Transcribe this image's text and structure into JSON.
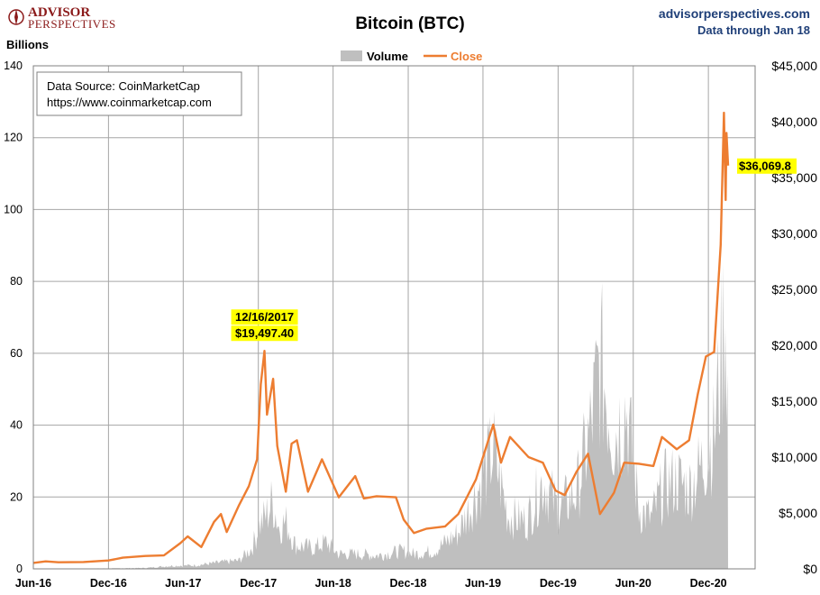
{
  "brand": {
    "name": "ADVISOR",
    "sub": "PERSPECTIVES"
  },
  "header": {
    "site": "advisorperspectives.com",
    "data_through": "Data through Jan 18"
  },
  "colors": {
    "volume": "#bfbfbf",
    "close": "#ed7d31",
    "annotation_bg": "#ffff00",
    "grid": "#a6a6a6",
    "brand": "#8b1a1a",
    "header_text": "#1f3f78"
  },
  "source_box": {
    "line1": "Data Source: CoinMarketCap",
    "line2": "https://www.coinmarketcap.com"
  },
  "chart_data": {
    "type": "area+line",
    "title": "Bitcoin (BTC)",
    "ylabel_left": "Billions",
    "legend": {
      "position": "top-center",
      "items": [
        "Volume",
        "Close"
      ]
    },
    "grid": true,
    "x_range": [
      "2016-06-01",
      "2021-01-18"
    ],
    "x_ticks": [
      {
        "date": "2016-06-01",
        "label": "Jun-16"
      },
      {
        "date": "2016-12-01",
        "label": "Dec-16"
      },
      {
        "date": "2017-06-01",
        "label": "Jun-17"
      },
      {
        "date": "2017-12-01",
        "label": "Dec-17"
      },
      {
        "date": "2018-06-01",
        "label": "Jun-18"
      },
      {
        "date": "2018-12-01",
        "label": "Dec-18"
      },
      {
        "date": "2019-06-01",
        "label": "Jun-19"
      },
      {
        "date": "2019-12-01",
        "label": "Dec-19"
      },
      {
        "date": "2020-06-01",
        "label": "Jun-20"
      },
      {
        "date": "2020-12-01",
        "label": "Dec-20"
      }
    ],
    "y_left": {
      "min": 0,
      "max": 140,
      "ticks": [
        0,
        20,
        40,
        60,
        80,
        100,
        120,
        140
      ],
      "tick_labels": [
        "0",
        "20",
        "40",
        "60",
        "80",
        "100",
        "120",
        "140"
      ]
    },
    "y_right": {
      "min": 0,
      "max": 45000,
      "ticks": [
        0,
        5000,
        10000,
        15000,
        20000,
        25000,
        30000,
        35000,
        40000,
        45000
      ],
      "tick_labels": [
        "$0",
        "$5,000",
        "$10,000",
        "$15,000",
        "$20,000",
        "$25,000",
        "$30,000",
        "$35,000",
        "$40,000",
        "$45,000"
      ]
    },
    "series": [
      {
        "name": "Volume",
        "axis": "left",
        "type": "area",
        "points": [
          [
            "2016-06-01",
            0.1
          ],
          [
            "2016-09-01",
            0.1
          ],
          [
            "2016-12-01",
            0.15
          ],
          [
            "2017-03-01",
            0.3
          ],
          [
            "2017-05-01",
            1.0
          ],
          [
            "2017-07-01",
            1.2
          ],
          [
            "2017-09-01",
            2.2
          ],
          [
            "2017-10-15",
            2.8
          ],
          [
            "2017-11-15",
            7
          ],
          [
            "2017-12-05",
            15
          ],
          [
            "2017-12-20",
            18
          ],
          [
            "2018-01-05",
            23
          ],
          [
            "2018-01-20",
            14
          ],
          [
            "2018-02-06",
            16
          ],
          [
            "2018-03-01",
            8
          ],
          [
            "2018-04-15",
            7
          ],
          [
            "2018-05-15",
            9
          ],
          [
            "2018-06-15",
            5
          ],
          [
            "2018-08-01",
            5
          ],
          [
            "2018-09-15",
            4.5
          ],
          [
            "2018-11-15",
            6
          ],
          [
            "2018-12-15",
            5
          ],
          [
            "2019-02-01",
            6
          ],
          [
            "2019-04-01",
            12
          ],
          [
            "2019-05-15",
            25
          ],
          [
            "2019-06-26",
            40
          ],
          [
            "2019-08-01",
            18
          ],
          [
            "2019-09-15",
            16
          ],
          [
            "2019-10-26",
            30
          ],
          [
            "2019-12-01",
            20
          ],
          [
            "2020-01-15",
            26
          ],
          [
            "2020-02-15",
            45
          ],
          [
            "2020-03-13",
            70
          ],
          [
            "2020-04-15",
            45
          ],
          [
            "2020-05-15",
            55
          ],
          [
            "2020-06-15",
            20
          ],
          [
            "2020-07-15",
            17
          ],
          [
            "2020-08-15",
            28
          ],
          [
            "2020-09-15",
            30
          ],
          [
            "2020-10-15",
            27
          ],
          [
            "2020-11-15",
            35
          ],
          [
            "2020-12-15",
            45
          ],
          [
            "2021-01-04",
            75
          ],
          [
            "2021-01-11",
            90
          ],
          [
            "2021-01-18",
            55
          ]
        ]
      },
      {
        "name": "Close",
        "axis": "right",
        "type": "line",
        "points": [
          [
            "2016-06-01",
            530
          ],
          [
            "2016-07-01",
            670
          ],
          [
            "2016-08-01",
            590
          ],
          [
            "2016-10-01",
            615
          ],
          [
            "2016-12-01",
            750
          ],
          [
            "2017-01-05",
            1000
          ],
          [
            "2017-03-01",
            1150
          ],
          [
            "2017-04-15",
            1200
          ],
          [
            "2017-05-25",
            2300
          ],
          [
            "2017-06-12",
            2900
          ],
          [
            "2017-07-15",
            1950
          ],
          [
            "2017-08-15",
            4200
          ],
          [
            "2017-09-01",
            4900
          ],
          [
            "2017-09-15",
            3300
          ],
          [
            "2017-10-15",
            5700
          ],
          [
            "2017-11-08",
            7400
          ],
          [
            "2017-11-28",
            9800
          ],
          [
            "2017-12-07",
            16500
          ],
          [
            "2017-12-16",
            19497
          ],
          [
            "2017-12-22",
            13800
          ],
          [
            "2018-01-06",
            17000
          ],
          [
            "2018-01-16",
            11000
          ],
          [
            "2018-02-06",
            6900
          ],
          [
            "2018-02-20",
            11200
          ],
          [
            "2018-03-05",
            11500
          ],
          [
            "2018-04-01",
            6900
          ],
          [
            "2018-05-05",
            9800
          ],
          [
            "2018-06-15",
            6400
          ],
          [
            "2018-07-25",
            8300
          ],
          [
            "2018-08-15",
            6300
          ],
          [
            "2018-09-15",
            6500
          ],
          [
            "2018-11-01",
            6400
          ],
          [
            "2018-11-20",
            4400
          ],
          [
            "2018-12-15",
            3200
          ],
          [
            "2019-01-15",
            3600
          ],
          [
            "2019-03-01",
            3800
          ],
          [
            "2019-04-02",
            4900
          ],
          [
            "2019-05-15",
            8000
          ],
          [
            "2019-06-26",
            12900
          ],
          [
            "2019-07-15",
            9500
          ],
          [
            "2019-08-06",
            11800
          ],
          [
            "2019-09-20",
            10000
          ],
          [
            "2019-10-25",
            9500
          ],
          [
            "2019-11-25",
            7000
          ],
          [
            "2019-12-17",
            6600
          ],
          [
            "2020-01-15",
            8700
          ],
          [
            "2020-02-12",
            10300
          ],
          [
            "2020-03-12",
            4900
          ],
          [
            "2020-04-15",
            6800
          ],
          [
            "2020-05-10",
            9500
          ],
          [
            "2020-06-15",
            9400
          ],
          [
            "2020-07-20",
            9200
          ],
          [
            "2020-08-10",
            11800
          ],
          [
            "2020-09-15",
            10700
          ],
          [
            "2020-10-15",
            11500
          ],
          [
            "2020-11-05",
            15600
          ],
          [
            "2020-11-25",
            19000
          ],
          [
            "2020-12-15",
            19400
          ],
          [
            "2020-12-31",
            29000
          ],
          [
            "2021-01-08",
            40800
          ],
          [
            "2021-01-12",
            33000
          ],
          [
            "2021-01-14",
            39000
          ],
          [
            "2021-01-18",
            36069.8
          ]
        ]
      }
    ],
    "annotations": [
      {
        "date_label": "12/16/2017",
        "value_label": "$19,497.40",
        "date": "2017-12-16",
        "value": 19497.4
      },
      {
        "value_label": "$36,069.8",
        "date": "2021-01-18",
        "value": 36069.8
      }
    ]
  }
}
